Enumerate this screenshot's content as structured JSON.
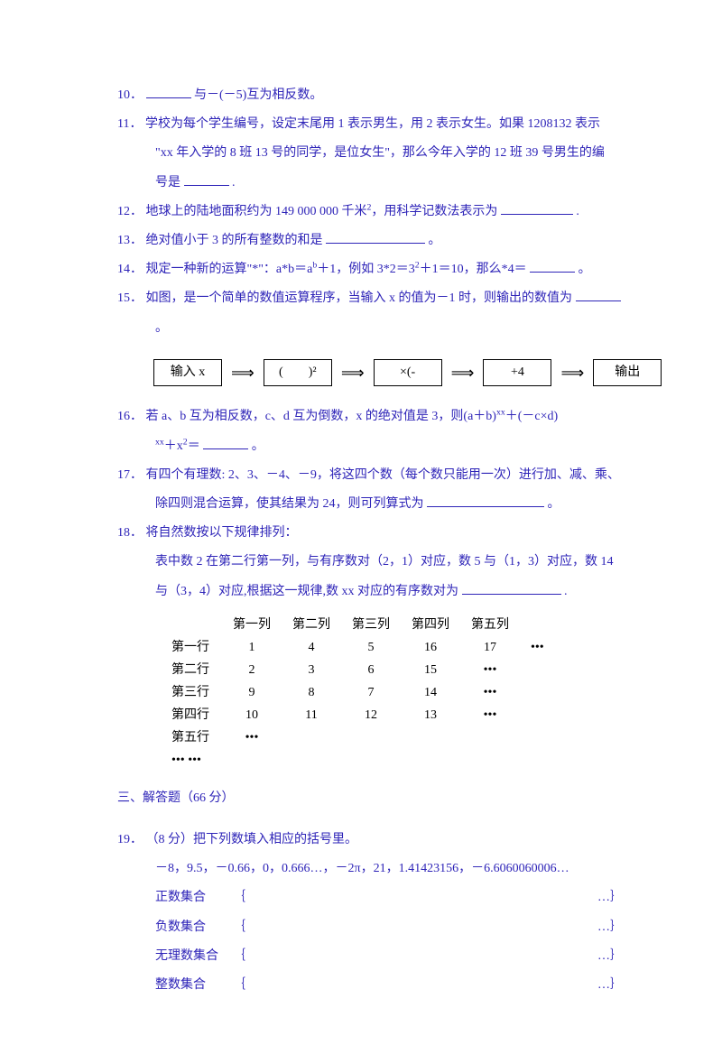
{
  "q10": {
    "num": "10．",
    "text_a": "与－(－5)互为相反数。"
  },
  "q11": {
    "num": "11．",
    "line1_a": "学校为每个学生编号，设定末尾用 1 表示男生，用 2 表示女生。如果 1208132 表示",
    "line2": "\"xx 年入学的 8 班 13 号的同学，是位女生\"，那么今年入学的 12 班 39 号男生的编",
    "line3_a": "号是",
    "line3_b": "."
  },
  "q12": {
    "num": "12．",
    "text_a": "地球上的陆地面积约为 149 000 000 千米",
    "sup": "2",
    "text_b": "，用科学记数法表示为",
    "text_c": "."
  },
  "q13": {
    "num": "13．",
    "text_a": "绝对值小于 3 的所有整数的和是",
    "text_b": "。"
  },
  "q14": {
    "num": "14．",
    "text_a": "规定一种新的运算\"*\"：a*b＝a",
    "sup1": "b",
    "text_b": "＋1，例如 3*2＝3",
    "sup2": "2",
    "text_c": "＋1＝10，那么*4＝",
    "text_d": "。"
  },
  "q15": {
    "num": "15．",
    "text_a": "如图，是一个简单的数值运算程序，当输入 x 的值为－1 时，则输出的数值为",
    "text_b": "。",
    "flow": {
      "b1": "输入 x",
      "b2": "(　　)²",
      "b3": "×(-",
      "b4": "+4",
      "b5": "输出",
      "arrow": "⟹"
    }
  },
  "q16": {
    "num": "16．",
    "line1": "若 a、b 互为相反数，c、d 互为倒数，x 的绝对值是 3，则(a＋b)",
    "sup1": "xx",
    "line1b": "＋(－c×d)",
    "line2_a": "",
    "sup2": "xx",
    "line2_b": "＋x",
    "sup3": "2",
    "line2_c": "＝",
    "line2_d": "。"
  },
  "q17": {
    "num": "17．",
    "line1": "有四个有理数: 2、3、－4、－9，将这四个数（每个数只能用一次）进行加、减、乘、",
    "line2_a": "除四则混合运算，使其结果为 24，则可列算式为",
    "line2_b": "。"
  },
  "q18": {
    "num": "18．",
    "line1": "将自然数按以下规律排列：",
    "line2": "表中数 2 在第二行第一列，与有序数对（2，1）对应，数 5 与（1，3）对应，数 14",
    "line3_a": "与（3，4）对应,根据这一规律,数 xx 对应的有序数对为",
    "line3_b": ".",
    "table": {
      "headers": [
        "",
        "第一列",
        "第二列",
        "第三列",
        "第四列",
        "第五列",
        ""
      ],
      "rows": [
        [
          "第一行",
          "1",
          "4",
          "5",
          "16",
          "17",
          "•••"
        ],
        [
          "第二行",
          "2",
          "3",
          "6",
          "15",
          "•••",
          ""
        ],
        [
          "第三行",
          "9",
          "8",
          "7",
          "14",
          "•••",
          ""
        ],
        [
          "第四行",
          "10",
          "11",
          "12",
          "13",
          "•••",
          ""
        ],
        [
          "第五行",
          "•••",
          "",
          "",
          "",
          "",
          ""
        ],
        [
          "•••  •••",
          "",
          "",
          "",
          "",
          "",
          ""
        ]
      ]
    }
  },
  "section3": "三、解答题（66 分）",
  "q19": {
    "num": "19．",
    "line1": "（8 分）把下列数填入相应的括号里。",
    "line2": "－8，9.5，－0.66，0，0.666…，－2π，21，1.41423156，－6.6060060006…",
    "sets": [
      {
        "label": "正数集合",
        "open": "｛",
        "close": "…｝"
      },
      {
        "label": "负数集合",
        "open": "｛",
        "close": "…｝"
      },
      {
        "label": "无理数集合",
        "open": "｛",
        "close": "…｝"
      },
      {
        "label": "整数集合",
        "open": "｛",
        "close": "…｝"
      }
    ]
  }
}
